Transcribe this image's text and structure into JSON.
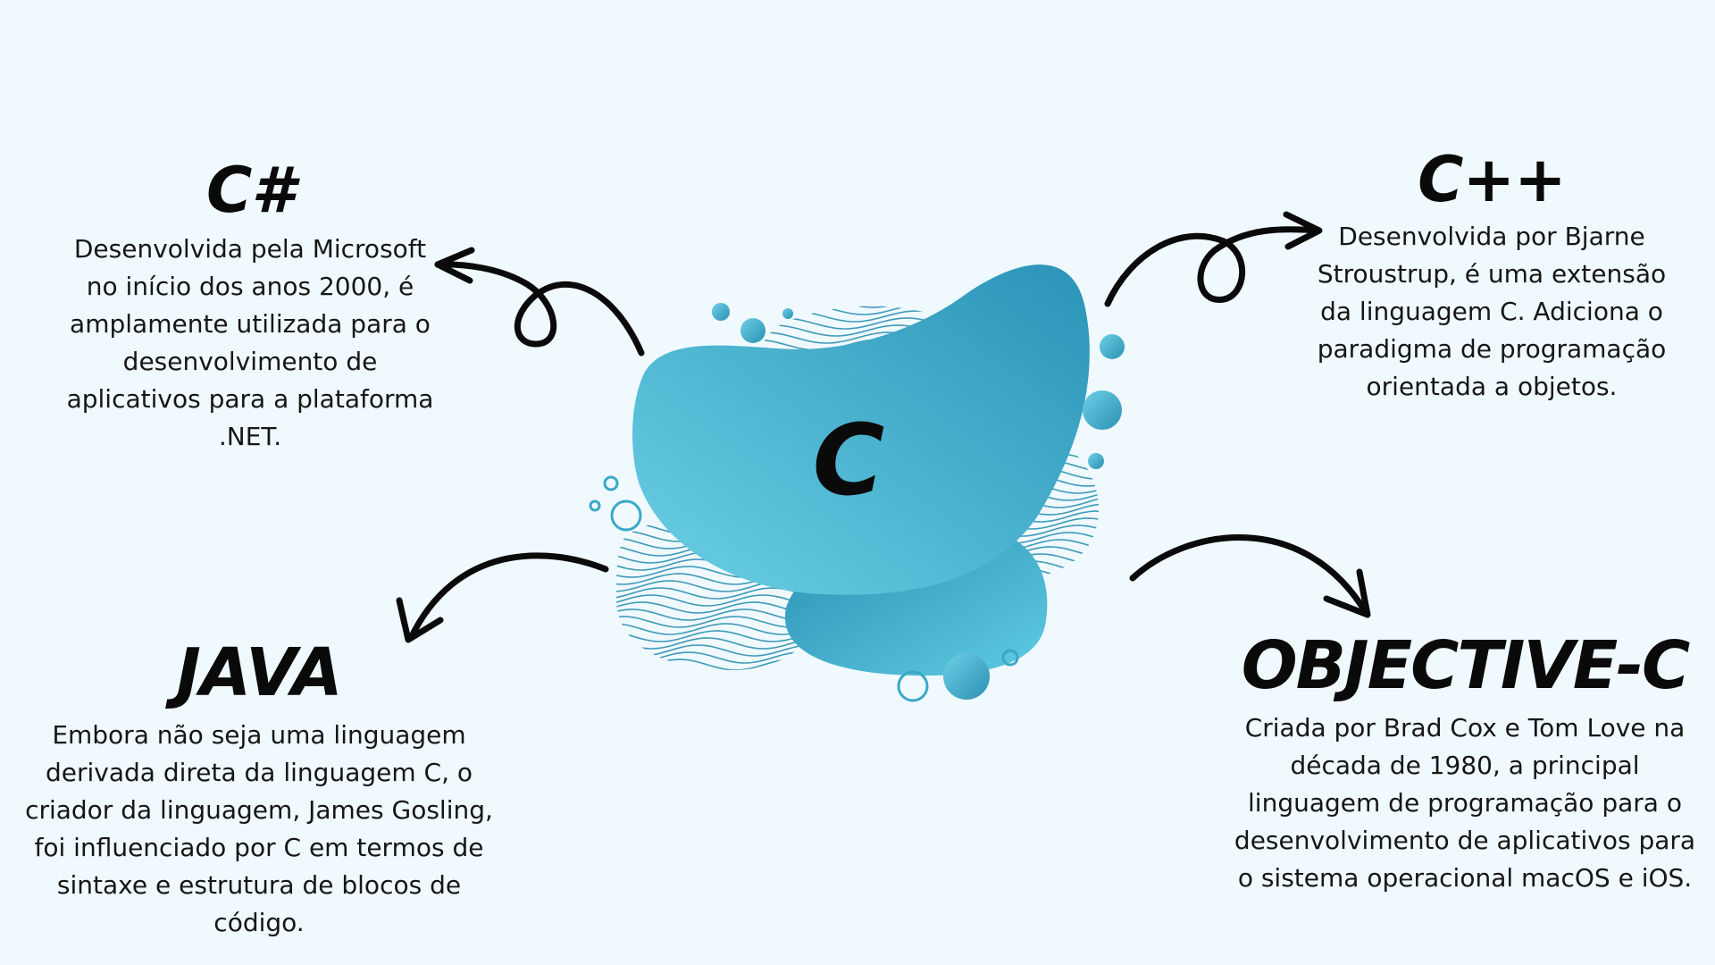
{
  "center": {
    "label": "C"
  },
  "colors": {
    "background": "#f0f9fe",
    "blob_light": "#5ec8e0",
    "blob_dark": "#2894b6",
    "text": "#161616"
  },
  "cards": {
    "csharp": {
      "title": "C#",
      "body": "Desenvolvida pela Microsoft no início dos anos 2000, é amplamente utilizada para o desenvolvimento de aplicativos para a plataforma .NET."
    },
    "cpp": {
      "title": "C++",
      "body": "Desenvolvida por Bjarne Stroustrup, é uma extensão da linguagem C. Adiciona o paradigma de programação orientada a objetos."
    },
    "java": {
      "title": "JAVA",
      "body": "Embora não seja uma linguagem derivada direta da linguagem C, o criador da linguagem, James Gosling, foi influenciado por C em termos de sintaxe e estrutura de blocos de código."
    },
    "objc": {
      "title": "OBJECTIVE-C",
      "body": "Criada por Brad Cox e Tom Love na década de 1980,  a principal linguagem de programação para o desenvolvimento de aplicativos para o sistema operacional macOS e iOS."
    }
  },
  "icons": {
    "arrows": [
      "arrow-to-csharp-icon",
      "arrow-to-cpp-icon",
      "arrow-to-java-icon",
      "arrow-to-objc-icon"
    ],
    "decoration": [
      "blob-main-icon",
      "blob-lower-icon",
      "wave-pattern-icon",
      "bubble-icon"
    ]
  }
}
